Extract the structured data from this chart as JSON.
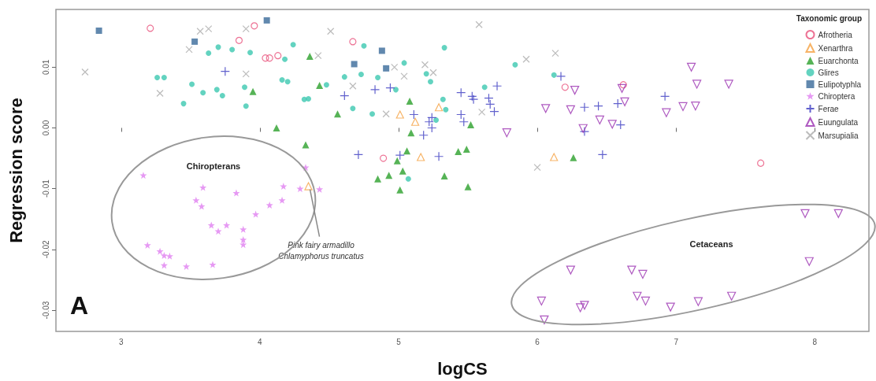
{
  "chart_data": {
    "type": "scatter",
    "xlabel": "logCS",
    "ylabel": "Regression score",
    "legend_title": "Taxonomic group",
    "legend": "top right",
    "grid": false,
    "xlim": [
      2.53,
      8.39
    ],
    "ylim": [
      -0.0335,
      0.0195
    ],
    "xticks": [
      3,
      4,
      5,
      6,
      7,
      8
    ],
    "yticks": [
      -0.03,
      -0.02,
      -0.01,
      {
        "value": 0,
        "label": "0.00"
      },
      0.01
    ],
    "annotations": [
      {
        "text": "Pink fairy armadillo\nChlamyphorus truncatus",
        "x": 4.35,
        "y": -0.0096
      },
      "Chiropterans",
      "Cetaceans",
      "A"
    ],
    "series": [
      {
        "name": "Afrotheria",
        "color": "#e8507a",
        "marker": "circle-open",
        "x": [
          3.21,
          3.96,
          3.85,
          4.04,
          4.07,
          4.13,
          4.67,
          4.89,
          6.2,
          6.62,
          7.61
        ],
        "values": [
          0.0164,
          0.0168,
          0.0144,
          0.0115,
          0.0115,
          0.0119,
          0.0142,
          -0.005,
          0.0067,
          0.0071,
          -0.0058
        ]
      },
      {
        "name": "Xenarthra",
        "color": "#f5a040",
        "marker": "triangle-open",
        "x": [
          4.35,
          5.01,
          5.12,
          5.29,
          5.16,
          6.12
        ],
        "values": [
          -0.0096,
          0.0022,
          0.001,
          0.0034,
          -0.0048,
          -0.0048
        ]
      },
      {
        "name": "Euarchonta",
        "color": "#2ca02c",
        "marker": "triangle",
        "x": [
          3.95,
          4.12,
          4.36,
          4.43,
          4.56,
          5.08,
          5.52,
          5.09,
          4.33,
          5.06,
          4.99,
          5.43,
          5.49,
          5.03,
          4.85,
          4.93,
          5.33,
          5.5,
          5.01,
          6.26
        ],
        "values": [
          0.006,
          0.0,
          0.0118,
          0.007,
          0.0023,
          0.0044,
          0.0005,
          -0.0008,
          -0.0028,
          -0.0038,
          -0.0054,
          -0.0039,
          -0.0035,
          -0.0071,
          -0.0084,
          -0.0078,
          -0.0079,
          -0.0097,
          -0.0102,
          -0.0049
        ]
      },
      {
        "name": "Glires",
        "color": "#3cc8b0",
        "marker": "circle",
        "x": [
          3.26,
          3.31,
          3.63,
          3.7,
          3.8,
          3.93,
          4.24,
          4.18,
          3.51,
          3.45,
          3.59,
          3.69,
          3.73,
          3.89,
          3.9,
          4.16,
          4.2,
          4.75,
          5.33,
          5.04,
          4.61,
          4.73,
          4.85,
          5.2,
          5.23,
          4.48,
          4.32,
          4.35,
          4.67,
          4.81,
          4.98,
          5.32,
          5.34,
          5.62,
          5.84,
          6.12,
          5.27,
          5.07
        ],
        "values": [
          0.0083,
          0.0083,
          0.0123,
          0.0133,
          0.0129,
          0.0124,
          0.0137,
          0.0113,
          0.0072,
          0.004,
          0.0058,
          0.0063,
          0.0053,
          0.0067,
          0.0036,
          0.0079,
          0.0076,
          0.0135,
          0.0132,
          0.0107,
          0.0084,
          0.0088,
          0.0083,
          0.0089,
          0.0076,
          0.0071,
          0.0047,
          0.0048,
          0.0032,
          0.0023,
          0.0063,
          0.0047,
          0.003,
          0.0067,
          0.0104,
          0.0087,
          0.0013,
          -0.0084
        ]
      },
      {
        "name": "Eulipotyphla",
        "color": "#3a6a9a",
        "marker": "square",
        "x": [
          2.84,
          3.53,
          4.05,
          4.88,
          4.68,
          4.91
        ],
        "values": [
          0.016,
          0.0142,
          0.0177,
          0.0127,
          0.0105,
          0.0098
        ]
      },
      {
        "name": "Chiroptera",
        "color": "#e080f0",
        "marker": "star",
        "x": [
          3.16,
          3.59,
          3.83,
          4.17,
          3.19,
          3.28,
          3.31,
          3.35,
          3.31,
          3.47,
          3.66,
          3.54,
          3.58,
          3.97,
          4.07,
          4.16,
          3.65,
          3.7,
          3.76,
          3.88,
          3.88,
          3.88,
          4.33,
          4.29,
          4.43
        ],
        "values": [
          -0.0078,
          -0.0098,
          -0.0107,
          -0.0096,
          -0.0193,
          -0.0203,
          -0.021,
          -0.0211,
          -0.0226,
          -0.0228,
          -0.0225,
          -0.0119,
          -0.0129,
          -0.0142,
          -0.0127,
          -0.0119,
          -0.016,
          -0.017,
          -0.016,
          -0.0167,
          -0.0184,
          -0.0192,
          -0.0065,
          -0.01,
          -0.0101
        ]
      },
      {
        "name": "Ferae",
        "color": "#3a3ac0",
        "marker": "cross",
        "x": [
          3.75,
          4.61,
          4.83,
          4.94,
          5.11,
          5.24,
          5.22,
          5.24,
          5.18,
          5.45,
          5.53,
          5.54,
          5.65,
          5.66,
          5.69,
          5.71,
          5.45,
          5.47,
          4.71,
          5.01,
          5.29,
          6.34,
          6.34,
          6.17,
          6.44,
          6.58,
          6.6,
          6.92,
          6.47
        ],
        "values": [
          0.0093,
          0.0053,
          0.0063,
          0.0066,
          0.0022,
          0.0017,
          0.001,
          0.0,
          -0.0012,
          0.0058,
          0.0052,
          0.0047,
          0.0049,
          0.0039,
          0.0027,
          0.0069,
          0.0022,
          0.001,
          -0.0044,
          -0.0045,
          -0.0047,
          0.0034,
          -0.0006,
          0.0085,
          0.0036,
          0.004,
          0.0005,
          0.0052,
          -0.0044
        ]
      },
      {
        "name": "Euungulata",
        "color": "#9a30b0",
        "marker": "triangle-down-open",
        "x": [
          6.06,
          6.24,
          5.78,
          6.27,
          6.33,
          7.11,
          7.15,
          7.38,
          6.61,
          6.63,
          6.93,
          7.05,
          7.14,
          6.45,
          6.54,
          6.24,
          6.03,
          6.05,
          6.31,
          6.34,
          7.93,
          8.17,
          7.96,
          6.68,
          6.76,
          6.72,
          6.78,
          6.96,
          7.16,
          7.4
        ],
        "values": [
          0.0032,
          0.003,
          -0.0008,
          0.0062,
          -0.0001,
          0.01,
          0.0072,
          0.0072,
          0.0065,
          0.0043,
          0.0025,
          0.0035,
          0.0036,
          0.0013,
          0.0006,
          -0.0234,
          -0.0285,
          -0.0316,
          -0.0296,
          -0.0292,
          -0.0141,
          -0.0141,
          -0.022,
          -0.0234,
          -0.0241,
          -0.0277,
          -0.0285,
          -0.0295,
          -0.0286,
          -0.0277
        ]
      },
      {
        "name": "Marsupialia",
        "color": "#aaaaaa",
        "marker": "x",
        "x": [
          2.74,
          3.57,
          3.63,
          3.9,
          3.49,
          3.28,
          3.9,
          4.51,
          5.58,
          4.42,
          5.19,
          5.25,
          5.04,
          4.97,
          4.67,
          4.91,
          5.6,
          5.92,
          6.13,
          6.0
        ],
        "values": [
          0.0092,
          0.0159,
          0.0163,
          0.0163,
          0.0129,
          0.0057,
          0.0089,
          0.0159,
          0.017,
          0.0119,
          0.0104,
          0.0091,
          0.0085,
          0.01,
          0.0069,
          0.0023,
          0.0026,
          0.0113,
          0.0123,
          -0.0065
        ]
      }
    ]
  }
}
